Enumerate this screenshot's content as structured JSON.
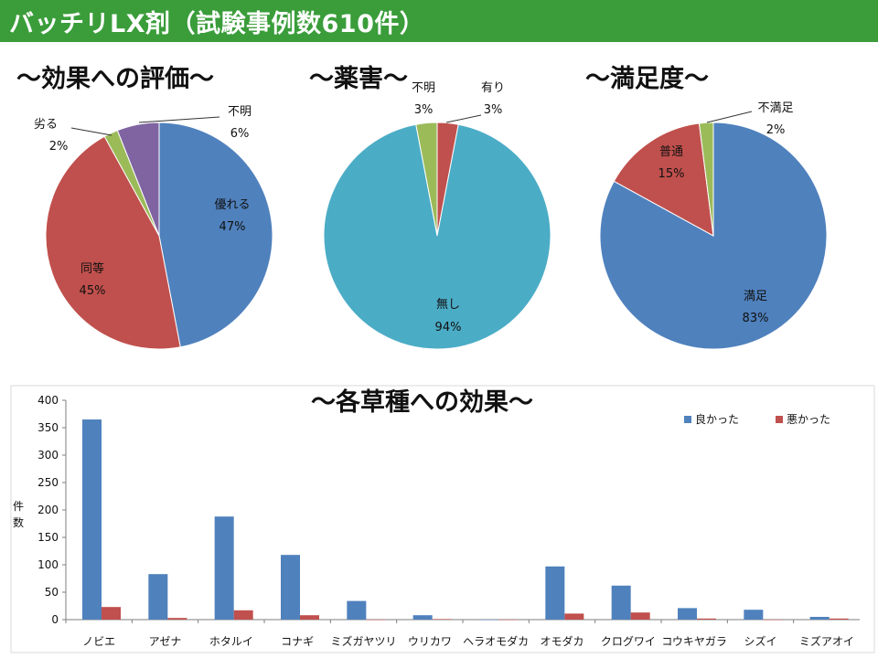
{
  "page_title": "バッチリLX剤（試験事例数610件）",
  "colors": {
    "title_bg": "#3a9d3a",
    "blue": "#4f81bd",
    "red": "#c0504d",
    "green": "#9bbb59",
    "purple": "#8064a2",
    "cyan": "#4bacc6"
  },
  "chart_data": [
    {
      "type": "pie",
      "title": "～効果への評価～",
      "slices": [
        {
          "label": "優れる",
          "value": 47,
          "pct_label": "47%",
          "color": "#4f81bd"
        },
        {
          "label": "同等",
          "value": 45,
          "pct_label": "45%",
          "color": "#c0504d"
        },
        {
          "label": "劣る",
          "value": 2,
          "pct_label": "2%",
          "color": "#9bbb59"
        },
        {
          "label": "不明",
          "value": 6,
          "pct_label": "6%",
          "color": "#8064a2"
        }
      ]
    },
    {
      "type": "pie",
      "title": "～薬害～",
      "slices": [
        {
          "label": "有り",
          "value": 3,
          "pct_label": "3%",
          "color": "#c0504d"
        },
        {
          "label": "無し",
          "value": 94,
          "pct_label": "94%",
          "color": "#4bacc6"
        },
        {
          "label": "不明",
          "value": 3,
          "pct_label": "3%",
          "color": "#9bbb59"
        }
      ]
    },
    {
      "type": "pie",
      "title": "～満足度～",
      "slices": [
        {
          "label": "満足",
          "value": 83,
          "pct_label": "83%",
          "color": "#4f81bd"
        },
        {
          "label": "普通",
          "value": 15,
          "pct_label": "15%",
          "color": "#c0504d"
        },
        {
          "label": "不満足",
          "value": 2,
          "pct_label": "2%",
          "color": "#9bbb59"
        }
      ]
    },
    {
      "type": "bar",
      "title": "～各草種への効果～",
      "ylabel": "件数",
      "ylim": [
        0,
        400
      ],
      "yticks": [
        0,
        50,
        100,
        150,
        200,
        250,
        300,
        350,
        400
      ],
      "legend_position": "top-right",
      "categories": [
        "ノビエ",
        "アゼナ",
        "ホタルイ",
        "コナギ",
        "ミズガヤツリ",
        "ウリカワ",
        "ヘラオモダカ",
        "オモダカ",
        "クログワイ",
        "コウキヤガラ",
        "シズイ",
        "ミズアオイ"
      ],
      "series": [
        {
          "name": "良かった",
          "color": "#4f81bd",
          "values": [
            365,
            83,
            188,
            118,
            34,
            8,
            0,
            97,
            62,
            21,
            18,
            5
          ]
        },
        {
          "name": "悪かった",
          "color": "#c0504d",
          "values": [
            23,
            3,
            17,
            8,
            0,
            1,
            0,
            11,
            13,
            2,
            0,
            2
          ]
        }
      ]
    }
  ]
}
